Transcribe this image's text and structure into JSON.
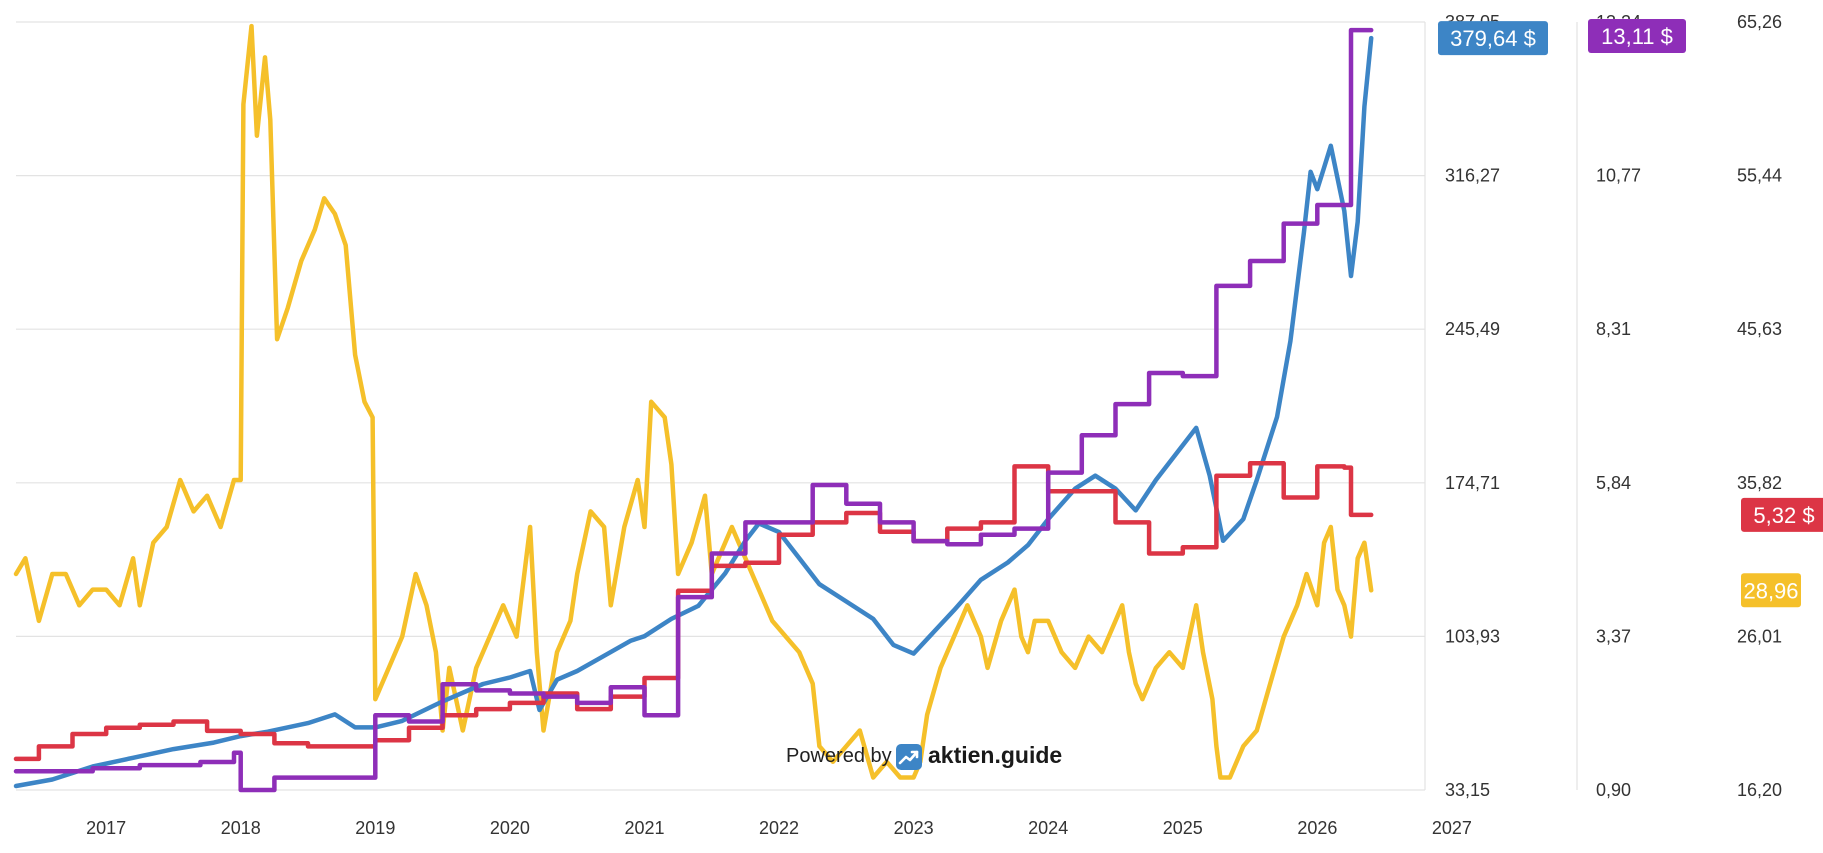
{
  "chart_data": {
    "type": "line",
    "title": "",
    "xlabel": "",
    "ylabel": "",
    "xlim": [
      2016.33,
      2026.8
    ],
    "x_ticks": [
      "2017",
      "2018",
      "2019",
      "2020",
      "2021",
      "2022",
      "2023",
      "2024",
      "2025",
      "2026",
      "2027"
    ],
    "grid": true,
    "legend": "none",
    "axes": [
      {
        "id": "price",
        "ticks": [
          "33,15",
          "103,93",
          "174,71",
          "245,49",
          "316,27",
          "387,05"
        ],
        "ylim": [
          33.15,
          387.05
        ]
      },
      {
        "id": "dividend",
        "ticks": [
          "0,90",
          "3,37",
          "5,84",
          "8,31",
          "10,77",
          "13,24"
        ],
        "ylim": [
          0.9,
          13.24
        ]
      },
      {
        "id": "pe",
        "ticks": [
          "16,20",
          "26,01",
          "35,82",
          "45,63",
          "55,44",
          "65,26"
        ],
        "ylim": [
          16.2,
          65.26
        ]
      }
    ],
    "series": [
      {
        "axis": "price",
        "color": "#3d85c6",
        "step": false,
        "badge": "379,64 $",
        "points": [
          [
            2016.33,
            35
          ],
          [
            2016.6,
            38
          ],
          [
            2016.9,
            44
          ],
          [
            2017.2,
            48
          ],
          [
            2017.5,
            52
          ],
          [
            2017.8,
            55
          ],
          [
            2018.0,
            58
          ],
          [
            2018.2,
            60
          ],
          [
            2018.5,
            64
          ],
          [
            2018.7,
            68
          ],
          [
            2018.85,
            62
          ],
          [
            2019.0,
            62
          ],
          [
            2019.2,
            65
          ],
          [
            2019.5,
            74
          ],
          [
            2019.8,
            82
          ],
          [
            2020.0,
            85
          ],
          [
            2020.15,
            88
          ],
          [
            2020.22,
            70
          ],
          [
            2020.35,
            84
          ],
          [
            2020.5,
            88
          ],
          [
            2020.7,
            95
          ],
          [
            2020.9,
            102
          ],
          [
            2021.0,
            104
          ],
          [
            2021.2,
            112
          ],
          [
            2021.4,
            118
          ],
          [
            2021.6,
            133
          ],
          [
            2021.75,
            148
          ],
          [
            2021.85,
            156
          ],
          [
            2022.0,
            152
          ],
          [
            2022.15,
            140
          ],
          [
            2022.3,
            128
          ],
          [
            2022.5,
            120
          ],
          [
            2022.7,
            112
          ],
          [
            2022.85,
            100
          ],
          [
            2023.0,
            96
          ],
          [
            2023.15,
            106
          ],
          [
            2023.3,
            116
          ],
          [
            2023.5,
            130
          ],
          [
            2023.7,
            138
          ],
          [
            2023.85,
            146
          ],
          [
            2024.0,
            158
          ],
          [
            2024.2,
            172
          ],
          [
            2024.35,
            178
          ],
          [
            2024.5,
            172
          ],
          [
            2024.65,
            162
          ],
          [
            2024.8,
            176
          ],
          [
            2024.95,
            188
          ],
          [
            2025.1,
            200
          ],
          [
            2025.2,
            178
          ],
          [
            2025.3,
            148
          ],
          [
            2025.45,
            158
          ],
          [
            2025.55,
            176
          ],
          [
            2025.7,
            205
          ],
          [
            2025.8,
            240
          ],
          [
            2025.9,
            290
          ],
          [
            2025.95,
            318
          ],
          [
            2026.0,
            310
          ],
          [
            2026.05,
            320
          ],
          [
            2026.1,
            330
          ],
          [
            2026.2,
            300
          ],
          [
            2026.25,
            270
          ],
          [
            2026.3,
            295
          ],
          [
            2026.35,
            348
          ],
          [
            2026.4,
            379.64
          ]
        ]
      },
      {
        "axis": "dividend",
        "color": "#8e2eb8",
        "step": true,
        "badge": "13,11 $",
        "points": [
          [
            2016.33,
            1.2
          ],
          [
            2016.6,
            1.2
          ],
          [
            2016.9,
            1.25
          ],
          [
            2017.25,
            1.3
          ],
          [
            2017.7,
            1.35
          ],
          [
            2017.95,
            1.5
          ],
          [
            2018.0,
            0.9
          ],
          [
            2018.25,
            1.1
          ],
          [
            2018.7,
            1.1
          ],
          [
            2019.0,
            2.1
          ],
          [
            2019.25,
            2.0
          ],
          [
            2019.5,
            2.6
          ],
          [
            2019.75,
            2.5
          ],
          [
            2020.0,
            2.45
          ],
          [
            2020.25,
            2.4
          ],
          [
            2020.5,
            2.3
          ],
          [
            2020.75,
            2.55
          ],
          [
            2021.0,
            2.1
          ],
          [
            2021.25,
            4.0
          ],
          [
            2021.5,
            4.7
          ],
          [
            2021.75,
            5.2
          ],
          [
            2022.25,
            5.8
          ],
          [
            2022.5,
            5.5
          ],
          [
            2022.75,
            5.2
          ],
          [
            2023.0,
            4.9
          ],
          [
            2023.25,
            4.85
          ],
          [
            2023.5,
            5.0
          ],
          [
            2023.75,
            5.1
          ],
          [
            2024.0,
            6.0
          ],
          [
            2024.25,
            6.6
          ],
          [
            2024.5,
            7.1
          ],
          [
            2024.75,
            7.6
          ],
          [
            2025.0,
            7.55
          ],
          [
            2025.25,
            9.0
          ],
          [
            2025.5,
            9.4
          ],
          [
            2025.75,
            10.0
          ],
          [
            2026.0,
            10.3
          ],
          [
            2026.25,
            13.11
          ],
          [
            2026.4,
            13.11
          ]
        ]
      },
      {
        "axis": "dividend",
        "color": "#dc3545",
        "step": true,
        "badge": "5,32 $",
        "points": [
          [
            2016.33,
            1.4
          ],
          [
            2016.5,
            1.6
          ],
          [
            2016.75,
            1.8
          ],
          [
            2017.0,
            1.9
          ],
          [
            2017.25,
            1.95
          ],
          [
            2017.5,
            2.0
          ],
          [
            2017.75,
            1.85
          ],
          [
            2018.0,
            1.8
          ],
          [
            2018.25,
            1.65
          ],
          [
            2018.5,
            1.6
          ],
          [
            2018.75,
            1.6
          ],
          [
            2019.0,
            1.7
          ],
          [
            2019.25,
            1.9
          ],
          [
            2019.5,
            2.1
          ],
          [
            2019.75,
            2.2
          ],
          [
            2020.0,
            2.3
          ],
          [
            2020.25,
            2.45
          ],
          [
            2020.5,
            2.2
          ],
          [
            2020.75,
            2.4
          ],
          [
            2021.0,
            2.7
          ],
          [
            2021.25,
            4.1
          ],
          [
            2021.5,
            4.5
          ],
          [
            2021.75,
            4.55
          ],
          [
            2022.0,
            5.0
          ],
          [
            2022.25,
            5.2
          ],
          [
            2022.5,
            5.35
          ],
          [
            2022.75,
            5.05
          ],
          [
            2023.0,
            4.9
          ],
          [
            2023.25,
            5.1
          ],
          [
            2023.5,
            5.2
          ],
          [
            2023.75,
            6.1
          ],
          [
            2024.0,
            5.7
          ],
          [
            2024.25,
            5.7
          ],
          [
            2024.5,
            5.2
          ],
          [
            2024.75,
            4.7
          ],
          [
            2025.0,
            4.8
          ],
          [
            2025.25,
            5.95
          ],
          [
            2025.5,
            6.15
          ],
          [
            2025.75,
            5.6
          ],
          [
            2026.0,
            6.1
          ],
          [
            2026.2,
            6.08
          ],
          [
            2026.25,
            5.32
          ],
          [
            2026.4,
            5.32
          ]
        ]
      },
      {
        "axis": "pe",
        "color": "#f5c02a",
        "step": false,
        "badge": "28,96",
        "points": [
          [
            2016.33,
            30
          ],
          [
            2016.4,
            31
          ],
          [
            2016.5,
            27
          ],
          [
            2016.6,
            30
          ],
          [
            2016.7,
            30
          ],
          [
            2016.8,
            28
          ],
          [
            2016.9,
            29
          ],
          [
            2017.0,
            29
          ],
          [
            2017.1,
            28
          ],
          [
            2017.2,
            31
          ],
          [
            2017.25,
            28
          ],
          [
            2017.35,
            32
          ],
          [
            2017.45,
            33
          ],
          [
            2017.55,
            36
          ],
          [
            2017.65,
            34
          ],
          [
            2017.75,
            35
          ],
          [
            2017.85,
            33
          ],
          [
            2017.95,
            36
          ],
          [
            2018.0,
            36
          ],
          [
            2018.02,
            60
          ],
          [
            2018.08,
            65
          ],
          [
            2018.12,
            58
          ],
          [
            2018.18,
            63
          ],
          [
            2018.22,
            59
          ],
          [
            2018.27,
            45
          ],
          [
            2018.35,
            47
          ],
          [
            2018.45,
            50
          ],
          [
            2018.55,
            52
          ],
          [
            2018.62,
            54
          ],
          [
            2018.7,
            53
          ],
          [
            2018.78,
            51
          ],
          [
            2018.85,
            44
          ],
          [
            2018.92,
            41
          ],
          [
            2018.98,
            40
          ],
          [
            2019.0,
            22
          ],
          [
            2019.1,
            24
          ],
          [
            2019.2,
            26
          ],
          [
            2019.3,
            30
          ],
          [
            2019.38,
            28
          ],
          [
            2019.45,
            25
          ],
          [
            2019.5,
            20
          ],
          [
            2019.55,
            24
          ],
          [
            2019.65,
            20
          ],
          [
            2019.75,
            24
          ],
          [
            2019.85,
            26
          ],
          [
            2019.95,
            28
          ],
          [
            2020.05,
            26
          ],
          [
            2020.15,
            33
          ],
          [
            2020.2,
            25
          ],
          [
            2020.25,
            20
          ],
          [
            2020.35,
            25
          ],
          [
            2020.45,
            27
          ],
          [
            2020.5,
            30
          ],
          [
            2020.6,
            34
          ],
          [
            2020.7,
            33
          ],
          [
            2020.75,
            28
          ],
          [
            2020.85,
            33
          ],
          [
            2020.95,
            36
          ],
          [
            2021.0,
            33
          ],
          [
            2021.05,
            41
          ],
          [
            2021.15,
            40
          ],
          [
            2021.2,
            37
          ],
          [
            2021.25,
            30
          ],
          [
            2021.35,
            32
          ],
          [
            2021.45,
            35
          ],
          [
            2021.5,
            30
          ],
          [
            2021.55,
            31
          ],
          [
            2021.65,
            33
          ],
          [
            2021.75,
            31
          ],
          [
            2021.85,
            29
          ],
          [
            2021.95,
            27
          ],
          [
            2022.05,
            26
          ],
          [
            2022.15,
            25
          ],
          [
            2022.25,
            23
          ],
          [
            2022.3,
            19
          ],
          [
            2022.4,
            18
          ],
          [
            2022.5,
            19
          ],
          [
            2022.6,
            20
          ],
          [
            2022.7,
            17
          ],
          [
            2022.8,
            18
          ],
          [
            2022.9,
            17
          ],
          [
            2023.0,
            17
          ],
          [
            2023.05,
            18
          ],
          [
            2023.1,
            21
          ],
          [
            2023.2,
            24
          ],
          [
            2023.3,
            26
          ],
          [
            2023.4,
            28
          ],
          [
            2023.5,
            26
          ],
          [
            2023.55,
            24
          ],
          [
            2023.65,
            27
          ],
          [
            2023.75,
            29
          ],
          [
            2023.8,
            26
          ],
          [
            2023.85,
            25
          ],
          [
            2023.9,
            27
          ],
          [
            2024.0,
            27
          ],
          [
            2024.1,
            25
          ],
          [
            2024.2,
            24
          ],
          [
            2024.3,
            26
          ],
          [
            2024.4,
            25
          ],
          [
            2024.5,
            27
          ],
          [
            2024.55,
            28
          ],
          [
            2024.6,
            25
          ],
          [
            2024.65,
            23
          ],
          [
            2024.7,
            22
          ],
          [
            2024.8,
            24
          ],
          [
            2024.9,
            25
          ],
          [
            2025.0,
            24
          ],
          [
            2025.05,
            26
          ],
          [
            2025.1,
            28
          ],
          [
            2025.15,
            25
          ],
          [
            2025.22,
            22
          ],
          [
            2025.25,
            19
          ],
          [
            2025.28,
            17
          ],
          [
            2025.35,
            17
          ],
          [
            2025.45,
            19
          ],
          [
            2025.55,
            20
          ],
          [
            2025.65,
            23
          ],
          [
            2025.75,
            26
          ],
          [
            2025.85,
            28
          ],
          [
            2025.92,
            30
          ],
          [
            2026.0,
            28
          ],
          [
            2026.05,
            32
          ],
          [
            2026.1,
            33
          ],
          [
            2026.15,
            29
          ],
          [
            2026.2,
            28
          ],
          [
            2026.25,
            26
          ],
          [
            2026.3,
            31
          ],
          [
            2026.35,
            32
          ],
          [
            2026.4,
            28.96
          ]
        ]
      }
    ]
  },
  "watermark": {
    "prefix": "Powered by",
    "brand": "aktien.guide"
  }
}
